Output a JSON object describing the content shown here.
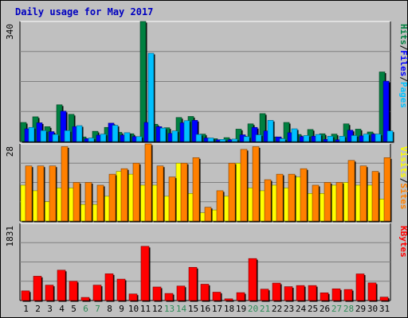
{
  "title": "Daily usage for May 2017",
  "colors": {
    "background": "#c0c0c0",
    "plot_background": "#c0c0c0",
    "title": "#0000c0",
    "hits": "#008040",
    "files": "#0000ff",
    "pages": "#00c0ff",
    "visits": "#ffff00",
    "sites": "#ff8000",
    "kbytes": "#ff0000",
    "weekend_label": "#2e8b57",
    "weekday_label": "#000000",
    "grid": "#808080"
  },
  "chart_data": [
    {
      "type": "bar",
      "panel": "hits-files-pages",
      "title": "Daily usage for May 2017",
      "ylabel_parts": [
        "Pages",
        "/",
        "Files",
        "/",
        "Hits"
      ],
      "ymax_label": "340",
      "ylim": [
        0,
        340
      ],
      "grid": true,
      "categories": [
        "1",
        "2",
        "3",
        "4",
        "5",
        "6",
        "7",
        "8",
        "9",
        "10",
        "11",
        "12",
        "13",
        "14",
        "15",
        "16",
        "17",
        "18",
        "19",
        "20",
        "21",
        "22",
        "23",
        "24",
        "25",
        "26",
        "27",
        "28",
        "29",
        "30",
        "31"
      ],
      "weekend_days": [
        "6",
        "7",
        "13",
        "14",
        "20",
        "21",
        "27",
        "28"
      ],
      "series": [
        {
          "name": "Hits",
          "values": [
            54,
            70,
            42,
            104,
            77,
            13,
            29,
            40,
            26,
            22,
            340,
            49,
            39,
            68,
            71,
            21,
            8,
            11,
            35,
            50,
            79,
            13,
            54,
            20,
            34,
            22,
            21,
            50,
            35,
            27,
            197
          ]
        },
        {
          "name": "Files",
          "values": [
            36,
            53,
            28,
            86,
            42,
            8,
            18,
            52,
            18,
            14,
            54,
            42,
            23,
            53,
            60,
            10,
            5,
            5,
            19,
            40,
            30,
            13,
            25,
            14,
            15,
            6,
            5,
            32,
            16,
            21,
            171
          ]
        },
        {
          "name": "Pages",
          "values": [
            40,
            31,
            20,
            31,
            45,
            10,
            21,
            46,
            25,
            14,
            250,
            38,
            30,
            59,
            20,
            10,
            6,
            7,
            14,
            19,
            60,
            8,
            36,
            17,
            20,
            15,
            15,
            17,
            21,
            21,
            30
          ]
        }
      ]
    },
    {
      "type": "bar",
      "panel": "visits-sites",
      "ylabel_parts": [
        "Sites",
        "/",
        "Visits"
      ],
      "ymax_label": "28",
      "ylim": [
        0,
        28
      ],
      "grid": true,
      "categories": [
        "1",
        "2",
        "3",
        "4",
        "5",
        "6",
        "7",
        "8",
        "9",
        "10",
        "11",
        "12",
        "13",
        "14",
        "15",
        "16",
        "17",
        "18",
        "19",
        "20",
        "21",
        "22",
        "23",
        "24",
        "25",
        "26",
        "27",
        "28",
        "29",
        "30",
        "31"
      ],
      "series": [
        {
          "name": "Visits",
          "values": [
            13,
            11,
            7,
            12,
            12,
            6,
            6,
            9,
            18,
            17,
            13,
            13,
            9,
            21,
            10,
            3,
            4,
            9,
            21,
            12,
            11,
            13,
            12,
            16,
            10,
            10,
            13,
            14,
            13,
            13,
            8
          ]
        },
        {
          "name": "Sites",
          "values": [
            20,
            20,
            20,
            27,
            14,
            14,
            13,
            17,
            19,
            21,
            28,
            20,
            16,
            21,
            23,
            5,
            11,
            21,
            26,
            27,
            15,
            17,
            17,
            19,
            13,
            14,
            14,
            22,
            20,
            18,
            23
          ]
        }
      ]
    },
    {
      "type": "bar",
      "panel": "kbytes",
      "ylabel_parts": [
        "KBytes"
      ],
      "ymax_label": "1831",
      "ylim": [
        0,
        1831
      ],
      "grid": true,
      "categories": [
        "1",
        "2",
        "3",
        "4",
        "5",
        "6",
        "7",
        "8",
        "9",
        "10",
        "11",
        "12",
        "13",
        "14",
        "15",
        "16",
        "17",
        "18",
        "19",
        "20",
        "21",
        "22",
        "23",
        "24",
        "25",
        "26",
        "27",
        "28",
        "29",
        "30",
        "31"
      ],
      "series": [
        {
          "name": "KBytes",
          "values": [
            229,
            577,
            366,
            721,
            458,
            74,
            366,
            635,
            508,
            156,
            1287,
            321,
            168,
            344,
            788,
            387,
            198,
            40,
            187,
            997,
            270,
            414,
            329,
            356,
            356,
            183,
            278,
            262,
            632,
            418,
            81
          ]
        }
      ]
    }
  ]
}
